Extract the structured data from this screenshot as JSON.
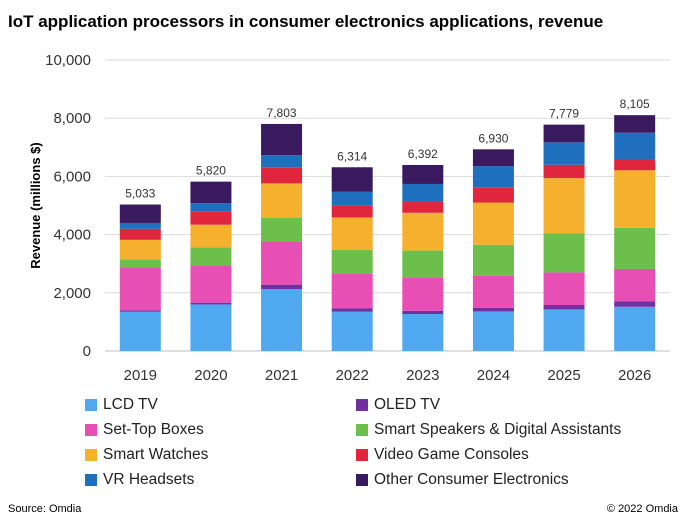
{
  "chart_data": {
    "type": "bar",
    "stacked": true,
    "title": "IoT application processors in consumer electronics applications, revenue",
    "xlabel": "",
    "ylabel": "Revenue (millions $)",
    "ylim": [
      0,
      10000
    ],
    "yticks": [
      "0",
      "2,000",
      "4,000",
      "6,000",
      "8,000",
      "10,000"
    ],
    "ytick_values": [
      0,
      2000,
      4000,
      6000,
      8000,
      10000
    ],
    "categories": [
      "2019",
      "2020",
      "2021",
      "2022",
      "2023",
      "2024",
      "2025",
      "2026"
    ],
    "totals": [
      "5,033",
      "5,820",
      "7,803",
      "6,314",
      "6,392",
      "6,930",
      "7,779",
      "8,105"
    ],
    "legend_position": "bottom",
    "series": [
      {
        "name": "LCD TV",
        "color": "#4fa8f0",
        "values": [
          1350,
          1600,
          2130,
          1350,
          1270,
          1360,
          1430,
          1520
        ]
      },
      {
        "name": "OLED TV",
        "color": "#7030a0",
        "values": [
          50,
          60,
          150,
          120,
          110,
          120,
          150,
          180
        ]
      },
      {
        "name": "Set-Top Boxes",
        "color": "#e84fb5",
        "values": [
          1480,
          1280,
          1480,
          1200,
          1150,
          1100,
          1120,
          1120
        ]
      },
      {
        "name": "Smart Speakers & Digital Assistants",
        "color": "#6cbf4a",
        "values": [
          270,
          620,
          810,
          800,
          920,
          1070,
          1340,
          1410
        ]
      },
      {
        "name": "Smart Watches",
        "color": "#f5b02e",
        "values": [
          670,
          780,
          1190,
          1120,
          1300,
          1450,
          1900,
          1980
        ]
      },
      {
        "name": "Video Game Consoles",
        "color": "#e0263c",
        "values": [
          380,
          460,
          540,
          400,
          390,
          510,
          460,
          370
        ]
      },
      {
        "name": "VR Headsets",
        "color": "#1f6fbf",
        "values": [
          200,
          280,
          430,
          480,
          600,
          740,
          770,
          920
        ]
      },
      {
        "name": "Other Consumer Electronics",
        "color": "#3a1a5e",
        "values": [
          633,
          740,
          1073,
          844,
          652,
          580,
          609,
          605
        ]
      }
    ]
  },
  "legend_items": [
    "LCD TV",
    "OLED TV",
    "Set-Top Boxes",
    "Smart Speakers & Digital Assistants",
    "Smart Watches",
    "Video Game Consoles",
    "VR Headsets",
    "Other Consumer Electronics"
  ],
  "footer": {
    "source": "Source: Omdia",
    "copyright": "© 2022 Omdia"
  }
}
